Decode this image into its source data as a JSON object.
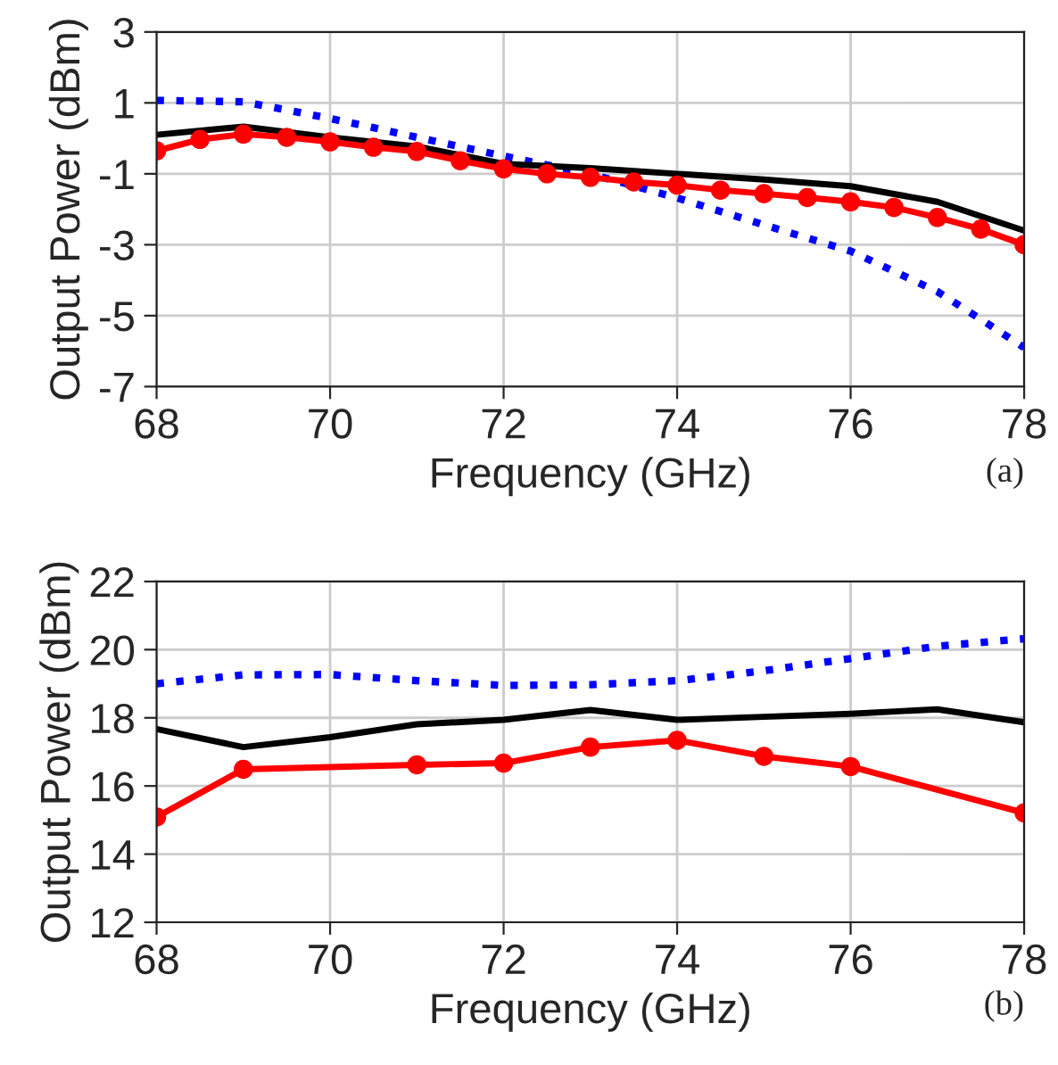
{
  "chart_data": [
    {
      "type": "line",
      "xlabel": "Frequency (GHz)",
      "ylabel": "Output Power (dBm)",
      "annotations": [
        "(a)"
      ],
      "xlim": [
        68,
        78
      ],
      "xticks": [
        68,
        70,
        72,
        74,
        76,
        78
      ],
      "ylim": [
        -7,
        3
      ],
      "yticks": [
        -7,
        -5,
        -3,
        -1,
        1,
        3
      ],
      "grid": true,
      "legend": false,
      "series": [
        {
          "color": "#0000ff",
          "line_style": "dotted",
          "marker": "none",
          "x": [
            68,
            69,
            69.5,
            70,
            70.5,
            71,
            72,
            73,
            74,
            75,
            76,
            77,
            77.5,
            78
          ],
          "values": [
            1.07,
            1.03,
            0.8,
            0.56,
            0.3,
            0.03,
            -0.5,
            -1.0,
            -1.68,
            -2.44,
            -3.18,
            -4.32,
            -5.1,
            -5.9
          ]
        },
        {
          "color": "#000000",
          "line_style": "solid",
          "marker": "none",
          "x": [
            68,
            69,
            70,
            71,
            72,
            73,
            74,
            75,
            76,
            77,
            78
          ],
          "values": [
            0.1,
            0.33,
            0.03,
            -0.23,
            -0.72,
            -0.84,
            -1.0,
            -1.16,
            -1.35,
            -1.79,
            -2.6
          ]
        },
        {
          "color": "#ff0000",
          "line_style": "solid",
          "marker": "circle",
          "x": [
            68,
            68.5,
            69,
            69.5,
            70,
            70.5,
            71,
            71.5,
            72,
            72.5,
            73,
            73.5,
            74,
            74.5,
            75,
            75.5,
            76,
            76.5,
            77,
            77.5,
            78
          ],
          "values": [
            -0.35,
            -0.03,
            0.12,
            0.03,
            -0.1,
            -0.25,
            -0.37,
            -0.63,
            -0.86,
            -1.0,
            -1.1,
            -1.23,
            -1.32,
            -1.46,
            -1.56,
            -1.67,
            -1.79,
            -1.95,
            -2.23,
            -2.56,
            -3.0
          ]
        }
      ]
    },
    {
      "type": "line",
      "xlabel": "Frequency (GHz)",
      "ylabel": "Output Power (dBm)",
      "annotations": [
        "(b)"
      ],
      "xlim": [
        68,
        78
      ],
      "xticks": [
        68,
        70,
        72,
        74,
        76,
        78
      ],
      "ylim": [
        12,
        22
      ],
      "yticks": [
        12,
        14,
        16,
        18,
        20,
        22
      ],
      "grid": true,
      "legend": false,
      "series": [
        {
          "color": "#0000ff",
          "line_style": "dotted",
          "marker": "none",
          "x": [
            68,
            69,
            70,
            71,
            72,
            73,
            74,
            75,
            76,
            77,
            78
          ],
          "values": [
            19.0,
            19.26,
            19.27,
            19.09,
            18.95,
            18.97,
            19.09,
            19.38,
            19.74,
            20.1,
            20.32
          ]
        },
        {
          "color": "#000000",
          "line_style": "solid",
          "marker": "none",
          "x": [
            68,
            69,
            70,
            71,
            72,
            73,
            74,
            75,
            76,
            77,
            78
          ],
          "values": [
            17.67,
            17.14,
            17.43,
            17.81,
            17.94,
            18.23,
            17.94,
            18.03,
            18.12,
            18.25,
            17.87
          ]
        },
        {
          "color": "#ff0000",
          "line_style": "solid",
          "marker": "circle",
          "x": [
            68,
            69,
            71,
            72,
            73,
            74,
            75,
            76,
            78
          ],
          "values": [
            15.09,
            16.49,
            16.62,
            16.67,
            17.14,
            17.34,
            16.87,
            16.57,
            15.21
          ]
        }
      ]
    }
  ]
}
